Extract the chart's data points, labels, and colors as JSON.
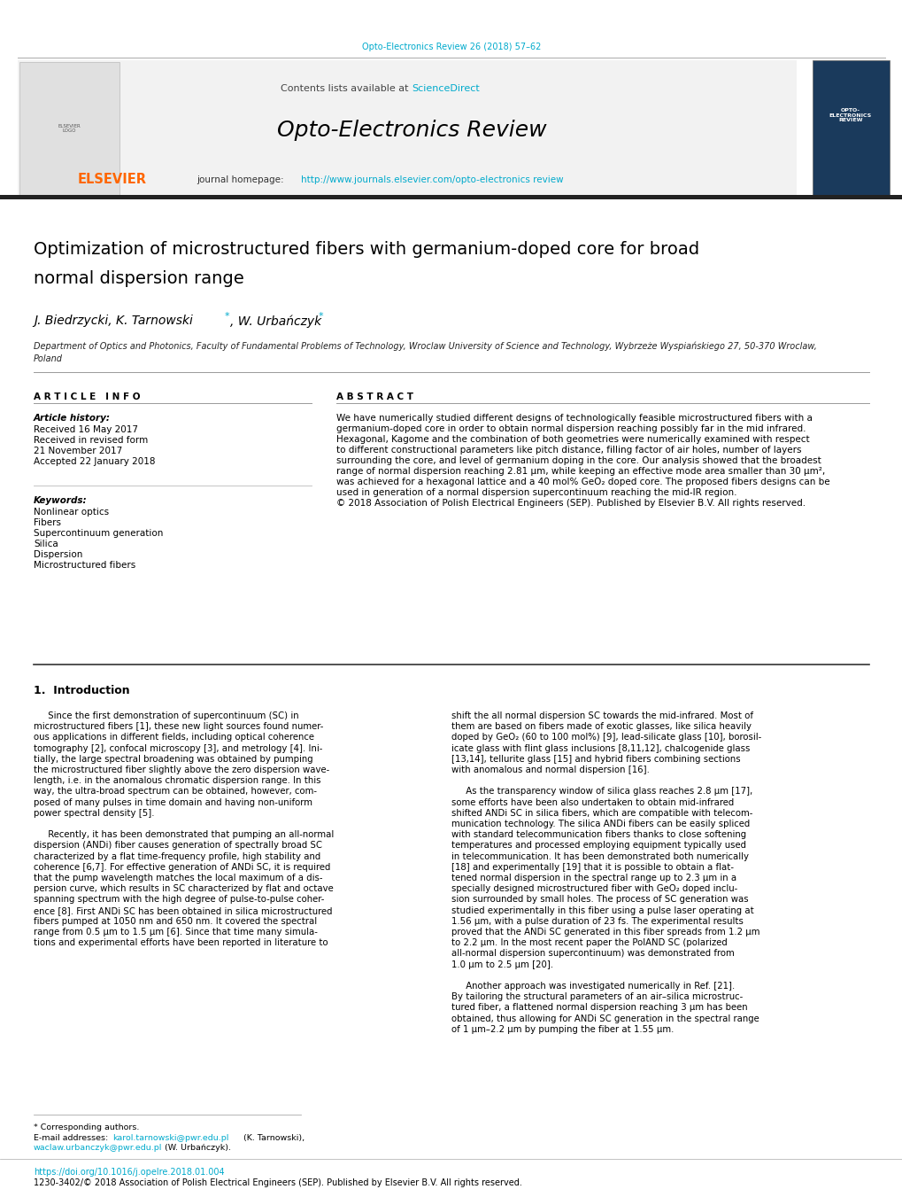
{
  "page_width": 10.2,
  "page_height": 13.51,
  "bg_color": "#ffffff",
  "journal_ref_color": "#00aacc",
  "journal_ref_text": "Opto-Electronics Review 26 (2018) 57–62",
  "header_bg": "#f0f0f0",
  "sciencedirect_color": "#00aacc",
  "journal_url": "http://www.journals.elsevier.com/opto-electronics review",
  "journal_url_color": "#00aacc",
  "elsevier_color": "#ff6600",
  "dark_bar_color": "#222222",
  "article_info_header": "ARTICLE INFO",
  "abstract_header": "ABSTRACT",
  "keywords": [
    "Nonlinear optics",
    "Fibers",
    "Supercontinuum generation",
    "Silica",
    "Dispersion",
    "Microstructured fibers"
  ],
  "doi_text": "https://doi.org/10.1016/j.opelre.2018.01.004",
  "issn_text": "1230-3402/© 2018 Association of Polish Electrical Engineers (SEP). Published by Elsevier B.V. All rights reserved.",
  "link_color": "#00aacc",
  "abstract_lines": [
    "We have numerically studied different designs of technologically feasible microstructured fibers with a",
    "germanium-doped core in order to obtain normal dispersion reaching possibly far in the mid infrared.",
    "Hexagonal, Kagome and the combination of both geometries were numerically examined with respect",
    "to different constructional parameters like pitch distance, filling factor of air holes, number of layers",
    "surrounding the core, and level of germanium doping in the core. Our analysis showed that the broadest",
    "range of normal dispersion reaching 2.81 μm, while keeping an effective mode area smaller than 30 μm²,",
    "was achieved for a hexagonal lattice and a 40 mol% GeO₂ doped core. The proposed fibers designs can be",
    "used in generation of a normal dispersion supercontinuum reaching the mid-IR region.",
    "© 2018 Association of Polish Electrical Engineers (SEP). Published by Elsevier B.V. All rights reserved."
  ],
  "intro_col1_lines": [
    "     Since the first demonstration of supercontinuum (SC) in",
    "microstructured fibers [1], these new light sources found numer-",
    "ous applications in different fields, including optical coherence",
    "tomography [2], confocal microscopy [3], and metrology [4]. Ini-",
    "tially, the large spectral broadening was obtained by pumping",
    "the microstructured fiber slightly above the zero dispersion wave-",
    "length, i.e. in the anomalous chromatic dispersion range. In this",
    "way, the ultra-broad spectrum can be obtained, however, com-",
    "posed of many pulses in time domain and having non-uniform",
    "power spectral density [5].",
    "",
    "     Recently, it has been demonstrated that pumping an all-normal",
    "dispersion (ANDi) fiber causes generation of spectrally broad SC",
    "characterized by a flat time-frequency profile, high stability and",
    "coherence [6,7]. For effective generation of ANDi SC, it is required",
    "that the pump wavelength matches the local maximum of a dis-",
    "persion curve, which results in SC characterized by flat and octave",
    "spanning spectrum with the high degree of pulse-to-pulse coher-",
    "ence [8]. First ANDi SC has been obtained in silica microstructured",
    "fibers pumped at 1050 nm and 650 nm. It covered the spectral",
    "range from 0.5 μm to 1.5 μm [6]. Since that time many simula-",
    "tions and experimental efforts have been reported in literature to"
  ],
  "intro_col2_lines": [
    "shift the all normal dispersion SC towards the mid-infrared. Most of",
    "them are based on fibers made of exotic glasses, like silica heavily",
    "doped by GeO₂ (60 to 100 mol%) [9], lead-silicate glass [10], borosil-",
    "icate glass with flint glass inclusions [8,11,12], chalcogenide glass",
    "[13,14], tellurite glass [15] and hybrid fibers combining sections",
    "with anomalous and normal dispersion [16].",
    "",
    "     As the transparency window of silica glass reaches 2.8 μm [17],",
    "some efforts have been also undertaken to obtain mid-infrared",
    "shifted ANDi SC in silica fibers, which are compatible with telecom-",
    "munication technology. The silica ANDi fibers can be easily spliced",
    "with standard telecommunication fibers thanks to close softening",
    "temperatures and processed employing equipment typically used",
    "in telecommunication. It has been demonstrated both numerically",
    "[18] and experimentally [19] that it is possible to obtain a flat-",
    "tened normal dispersion in the spectral range up to 2.3 μm in a",
    "specially designed microstructured fiber with GeO₂ doped inclu-",
    "sion surrounded by small holes. The process of SC generation was",
    "studied experimentally in this fiber using a pulse laser operating at",
    "1.56 μm, with a pulse duration of 23 fs. The experimental results",
    "proved that the ANDi SC generated in this fiber spreads from 1.2 μm",
    "to 2.2 μm. In the most recent paper the PolAND SC (polarized",
    "all-normal dispersion supercontinuum) was demonstrated from",
    "1.0 μm to 2.5 μm [20].",
    "",
    "     Another approach was investigated numerically in Ref. [21].",
    "By tailoring the structural parameters of an air–silica microstruc-",
    "tured fiber, a flattened normal dispersion reaching 3 μm has been",
    "obtained, thus allowing for ANDi SC generation in the spectral range",
    "of 1 μm–2.2 μm by pumping the fiber at 1.55 μm."
  ]
}
